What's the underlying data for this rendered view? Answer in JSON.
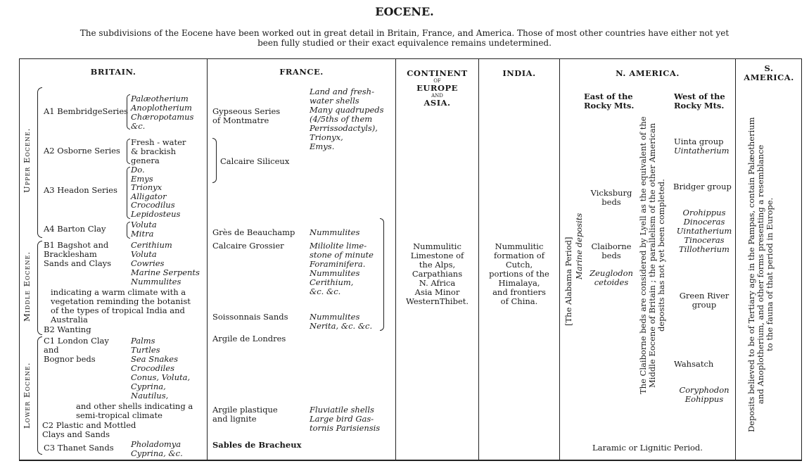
{
  "title": "EOCENE.",
  "intro": "The subdivisions of the Eocene have been worked out in great detail in Britain, France, and America.  Those of most other countries have either not yet\nbeen fully studied or their exact equivalence remains undetermined.",
  "britain": {
    "header": "BRITAIN.",
    "upper_label": "Upper Eocene.",
    "middle_label": "Middle Eocene.",
    "lower_label": "Lower Eocene.",
    "a1": "A1 BembridgeSeries",
    "a1_fossils": "Palæotherium\nAnoplotherium\nChæropotamus\n      &c.",
    "a2": "A2 Osborne Series",
    "a2_fossils": "Fresh - water\n  & brackish\n  genera",
    "a3": "A3 Headon Series",
    "a3_fossils": "Do.\nEmys\nTrionyx\nAlligator\nCrocodilus\nLepidosteus",
    "a4": "A4 Barton Clay",
    "a4_fossils": "Voluta\nMitra",
    "b1": "B1 Bagshot and\n    Bracklesham\n    Sands and Clays",
    "b1_fossils": "Cerithium\nVoluta\nCowries\nMarine Serpents\nNummulites",
    "b1_note": "indicating a warm climate with a\nvegetation reminding the botanist\nof the types of tropical India and\nAustralia",
    "b2": "B2 Wanting",
    "c1": "C1 London Clay\n          and\n    Bognor beds",
    "c1_fossils": "Palms\nTurtles\nSea Snakes\nCrocodiles\nConus, Voluta,\nCyprina,\nNautilus,",
    "c1_note": "and other shells indicating a\nsemi-tropical climate",
    "c2": "C2 Plastic and Mottled\n    Clays and Sands",
    "c3": "C3 Thanet Sands",
    "c3_fossils": "Pholadomya\nCyprina, &c."
  },
  "france": {
    "header": "FRANCE.",
    "gypseous": "Gypseous Series\n  of Montmatre",
    "gypseous_fossils": "Land and fresh-\n  water shells\nMany quadrupeds\n   (4/5ths of them\n    Perrissodactyls),\nTrionyx,\nEmys.",
    "calcaire_siliceux": "Calcaire Siliceux",
    "gres": "Grès de Beauchamp",
    "gres_fossils": "Nummulites",
    "calcaire_grossier": "Calcaire Grossier",
    "calcaire_grossier_fossils": "Miliolite lime-\n  stone of minute\n   Foraminifera.\nNummulites\nCerithium,\n  &c. &c.",
    "soissonnais": "Soissonnais Sands",
    "soissonnais_fossils": "Nummulites\nNerita, &c. &c.",
    "argile_londres": "Argile de Londres",
    "argile_plastique": "Argile plastique\n  and lignite",
    "argile_plastique_fossils": "Fluviatile shells\nLarge bird Gas-\n  tornis Parisiensis",
    "sables": "Sables de Bracheux"
  },
  "continent": {
    "header_1": "CONTINENT",
    "header_of": "OF",
    "header_2": "EUROPE",
    "header_and": "AND",
    "header_3": "ASIA.",
    "text": "Nummulitic\nLimestone of\nthe Alps,\nCarpathians\nN. Africa\nAsia Minor\nWesternThibet."
  },
  "india": {
    "header": "INDIA.",
    "text": "Nummulitic\nformation of\nCutch,\nportions of the\nHimalaya,\nand frontiers\nof China."
  },
  "n_america": {
    "header": "N. AMERICA.",
    "east_header": "East of the\nRocky Mts.",
    "west_header": "West of the\nRocky Mts.",
    "vicksburg": "Vicksburg\nbeds",
    "claiborne": "Claiborne\nbeds",
    "zeuglodon": "Zeuglodon\ncetoides",
    "alabama": "[The Alabama Period]",
    "marine": "Marine deposits",
    "lyell_note": "The Claiborne beds are considered by Lyell as the equivalent of the\nMiddle Eocene of Britain ; the parallelism of the other American\ndeposits has not yet been completed.",
    "uinta": "Uinta group",
    "uinta_fossil": "Uintatherium",
    "bridger": "Bridger group",
    "bridger_fossils": "Orohippus\nDinoceras\nUintatherium\nTinoceras\nTillotherium",
    "green_river": "Green River\ngroup",
    "wahsatch": "Wahsatch",
    "wahsatch_fossils": "Coryphodon\nEohippus",
    "laramic": "Laramic or Lignitic Period."
  },
  "s_america": {
    "header": "S.\nAMERICA.",
    "text": "Deposits believed to be of Tertiary age in the Pampas, contain Palæotherium\nand Anoplotherium, and other forms presenting a resemblance\nto the fauna of that period in Europe."
  }
}
